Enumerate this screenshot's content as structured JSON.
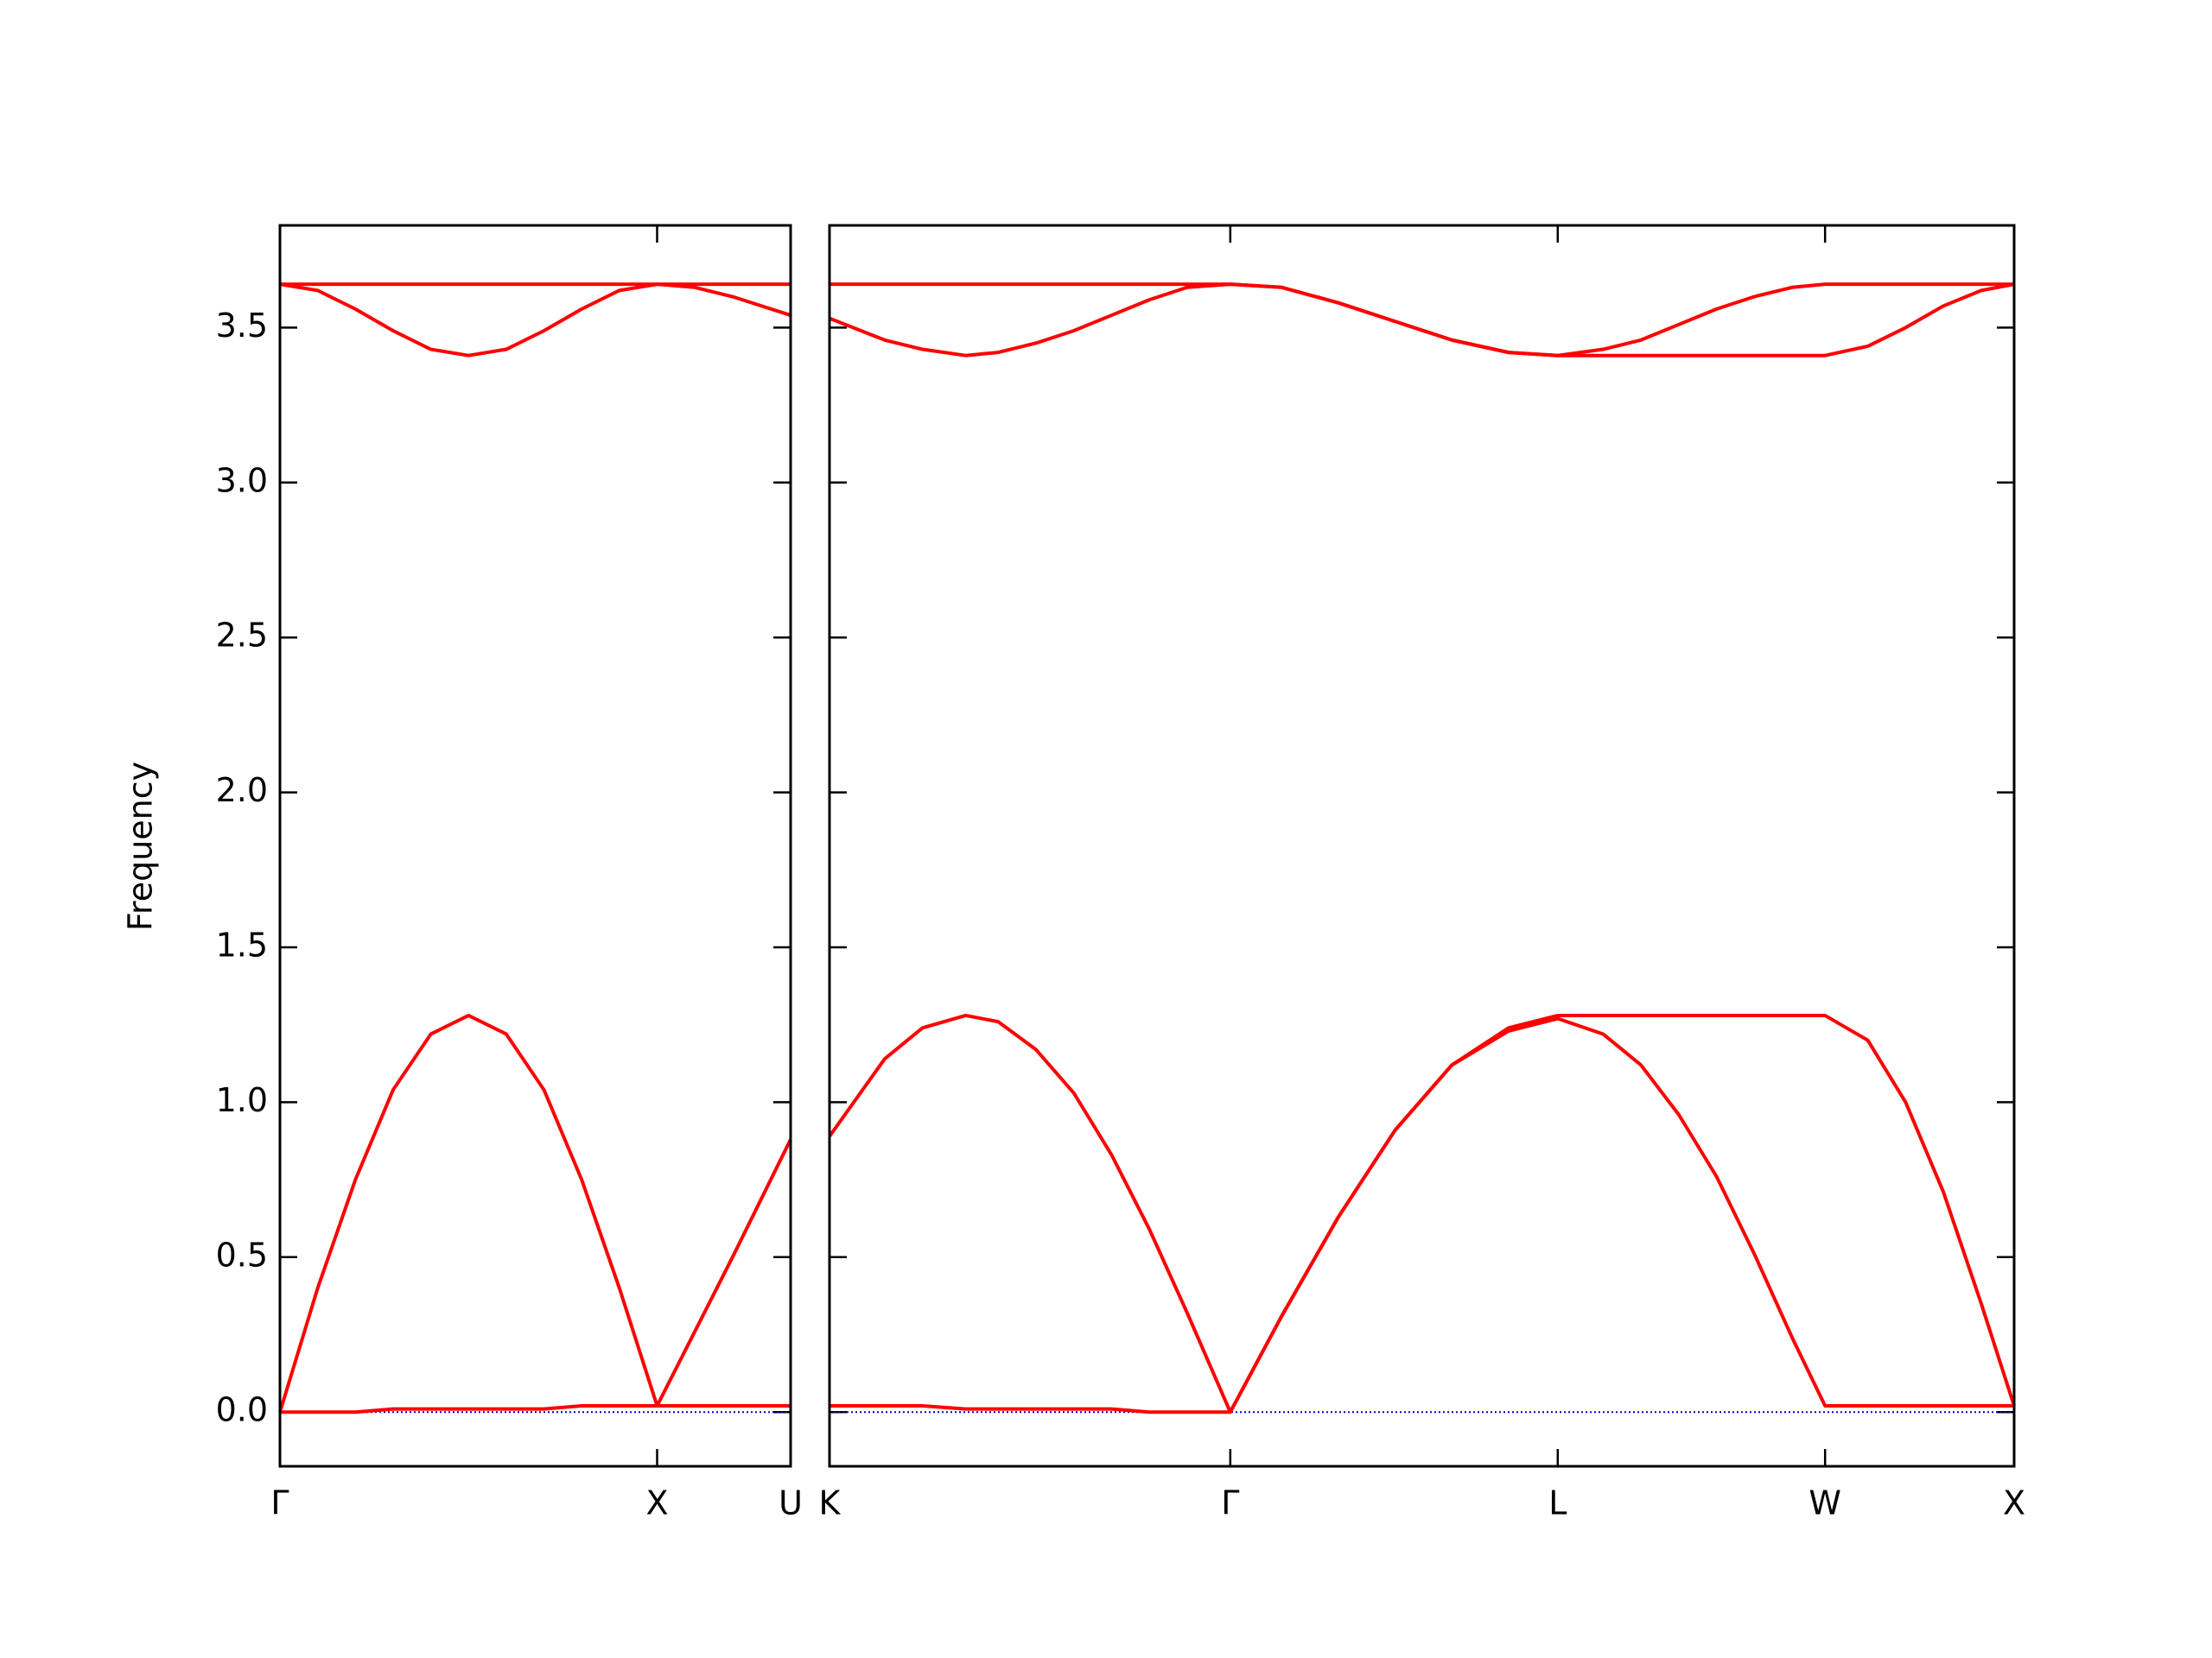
{
  "chart_data": [
    {
      "type": "line",
      "ylabel": "Frequency",
      "x": [
        0,
        0.1,
        0.2,
        0.3,
        0.4,
        0.5,
        0.6,
        0.7,
        0.8,
        0.9,
        1.0,
        1.1,
        1.2,
        1.354
      ],
      "xlim": [
        0,
        1.354
      ],
      "xticks": [
        {
          "value": 0,
          "label": "Γ"
        },
        {
          "value": 1,
          "label": "X"
        },
        {
          "value": 1.354,
          "label": "U"
        }
      ],
      "ylim": [
        -0.175,
        3.83
      ],
      "yticks": [
        {
          "value": 0,
          "label": "0.0"
        },
        0.5,
        {
          "value": 1,
          "label": "1.0"
        },
        1.5,
        {
          "value": 2,
          "label": "2.0"
        },
        2.5,
        {
          "value": 3,
          "label": "3.0"
        },
        3.5
      ],
      "show_ytick_labels": true,
      "hline": 0,
      "hline_color": "#0000cc",
      "series": [
        {
          "color": "#ff0000",
          "values": [
            0,
            0,
            0,
            0.01,
            0.01,
            0.01,
            0.01,
            0.01,
            0.02,
            0.02,
            0.02,
            0.02,
            0.02,
            0.02
          ]
        },
        {
          "color": "#ff0000",
          "values": [
            0,
            0.4,
            0.75,
            1.04,
            1.22,
            1.28,
            1.22,
            1.04,
            0.75,
            0.4,
            0.02,
            0.26,
            0.5,
            0.88
          ]
        },
        {
          "color": "#ff0000",
          "values": [
            3.64,
            3.64,
            3.64,
            3.64,
            3.64,
            3.64,
            3.64,
            3.64,
            3.64,
            3.64,
            3.64,
            3.64,
            3.64,
            3.64
          ]
        },
        {
          "color": "#ff0000",
          "values": [
            3.64,
            3.62,
            3.56,
            3.49,
            3.43,
            3.41,
            3.43,
            3.49,
            3.56,
            3.62,
            3.64,
            3.63,
            3.6,
            3.54
          ]
        }
      ]
    },
    {
      "type": "line",
      "x": [
        1.354,
        1.5,
        1.6,
        1.714,
        1.8,
        1.9,
        2.0,
        2.1,
        2.2,
        2.3,
        2.414,
        2.55,
        2.7,
        2.85,
        3.0,
        3.15,
        3.28,
        3.4,
        3.5,
        3.6,
        3.7,
        3.8,
        3.9,
        3.987,
        4.1,
        4.2,
        4.3,
        4.4,
        4.487
      ],
      "xlim": [
        1.354,
        4.487
      ],
      "xticks": [
        {
          "value": 1.354,
          "label": "K"
        },
        {
          "value": 2.414,
          "label": "Γ"
        },
        {
          "value": 3.28,
          "label": "L"
        },
        {
          "value": 3.987,
          "label": "W"
        },
        {
          "value": 4.487,
          "label": "X"
        }
      ],
      "ylim": [
        -0.175,
        3.83
      ],
      "yticks": [
        0,
        0.5,
        1,
        1.5,
        2,
        2.5,
        3,
        3.5
      ],
      "show_ytick_labels": false,
      "hline": 0,
      "hline_color": "#0000cc",
      "series": [
        {
          "color": "#ff0000",
          "values": [
            0.02,
            0.02,
            0.02,
            0.01,
            0.01,
            0.01,
            0.01,
            0.01,
            0,
            0,
            0,
            0.31,
            0.63,
            0.91,
            1.12,
            1.23,
            1.27,
            1.22,
            1.12,
            0.96,
            0.76,
            0.51,
            0.24,
            0.02,
            0.02,
            0.02,
            0.02,
            0.02,
            0.02
          ]
        },
        {
          "color": "#ff0000",
          "values": [
            0.89,
            1.14,
            1.24,
            1.28,
            1.26,
            1.17,
            1.03,
            0.83,
            0.59,
            0.32,
            0,
            0.31,
            0.63,
            0.91,
            1.12,
            1.24,
            1.28,
            1.28,
            1.28,
            1.28,
            1.28,
            1.28,
            1.28,
            1.28,
            1.2,
            1.0,
            0.71,
            0.35,
            0.02
          ]
        },
        {
          "color": "#ff0000",
          "values": [
            3.64,
            3.64,
            3.64,
            3.64,
            3.64,
            3.64,
            3.64,
            3.64,
            3.64,
            3.64,
            3.64,
            3.63,
            3.58,
            3.52,
            3.46,
            3.42,
            3.41,
            3.43,
            3.46,
            3.51,
            3.56,
            3.6,
            3.63,
            3.64,
            3.64,
            3.64,
            3.64,
            3.64,
            3.64
          ]
        },
        {
          "color": "#ff0000",
          "values": [
            3.53,
            3.46,
            3.43,
            3.41,
            3.42,
            3.45,
            3.49,
            3.54,
            3.59,
            3.63,
            3.64,
            3.63,
            3.58,
            3.52,
            3.46,
            3.42,
            3.41,
            3.41,
            3.41,
            3.41,
            3.41,
            3.41,
            3.41,
            3.41,
            3.44,
            3.5,
            3.57,
            3.62,
            3.64
          ]
        }
      ]
    }
  ]
}
